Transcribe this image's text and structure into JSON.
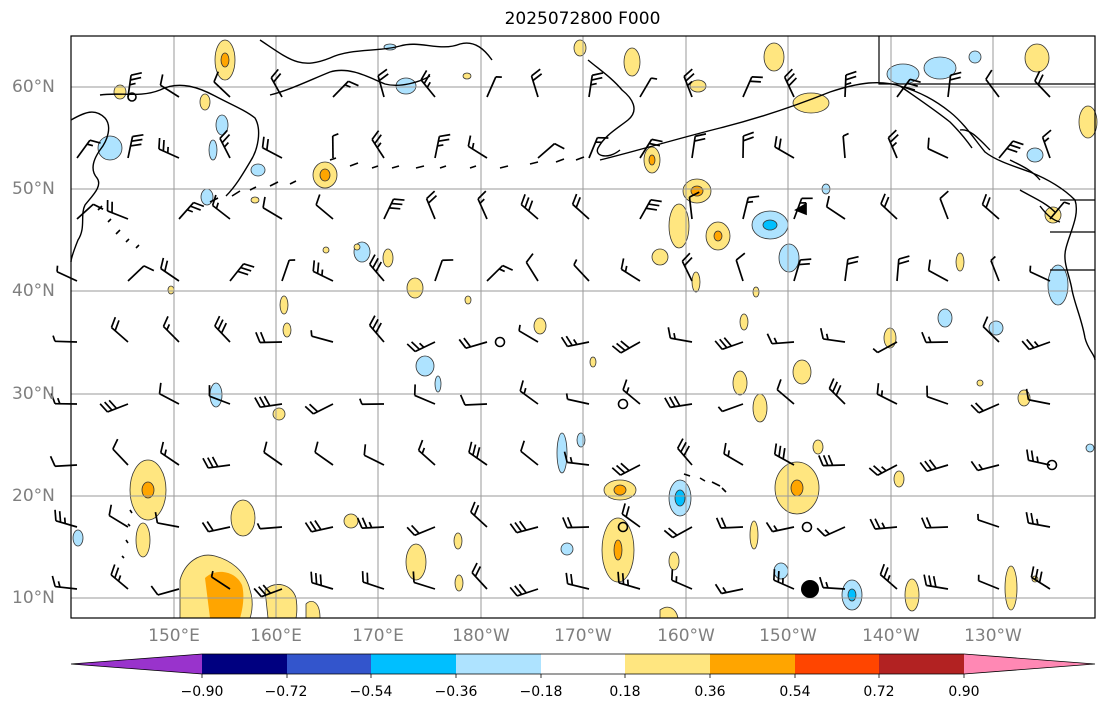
{
  "title": "2025072800 F000",
  "lat_labels": [
    "60°N",
    "50°N",
    "40°N",
    "30°N",
    "20°N",
    "10°N"
  ],
  "lon_labels": [
    "150°E",
    "160°E",
    "170°E",
    "180°W",
    "170°W",
    "160°W",
    "150°W",
    "140°W",
    "130°W"
  ],
  "colorbar": {
    "ticks": [
      "−0.90",
      "−0.72",
      "−0.54",
      "−0.36",
      "−0.18",
      "0.18",
      "0.36",
      "0.54",
      "0.72",
      "0.90"
    ],
    "colors": [
      "#9933cc",
      "#000080",
      "#3355cc",
      "#00bfff",
      "#aee3ff",
      "#ffffff",
      "#ffe680",
      "#ffa500",
      "#ff4500",
      "#b22222",
      "#ff88b4"
    ]
  },
  "map": {
    "lat_range": [
      8,
      65
    ],
    "lon_range_deg_east": [
      140,
      239
    ],
    "field_colors": {
      "positive_weak": "#ffe680",
      "positive_mod": "#ffa500",
      "negative_weak": "#aee3ff",
      "negative_mod": "#00bfff"
    }
  }
}
